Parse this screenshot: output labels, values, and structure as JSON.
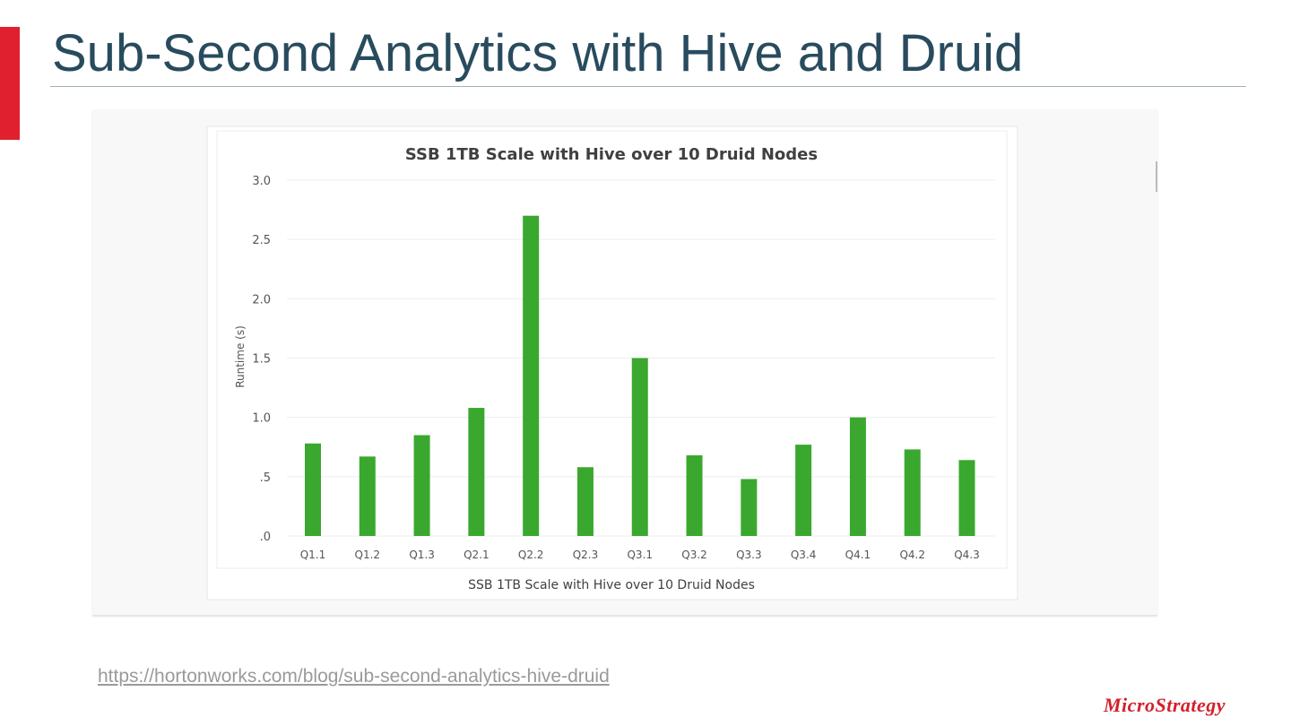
{
  "slide": {
    "title": "Sub-Second Analytics with Hive and Druid",
    "source_link": "https://hortonworks.com/blog/sub-second-analytics-hive-druid",
    "logo_text": "MicroStrategy",
    "accent_color": "#e1202f"
  },
  "chart_data": {
    "type": "bar",
    "title": "SSB 1TB Scale with Hive over 10 Druid Nodes",
    "xlabel": "SSB 1TB Scale with Hive over 10 Druid Nodes",
    "ylabel": "Runtime (s)",
    "categories": [
      "Q1.1",
      "Q1.2",
      "Q1.3",
      "Q2.1",
      "Q2.2",
      "Q2.3",
      "Q3.1",
      "Q3.2",
      "Q3.3",
      "Q3.4",
      "Q4.1",
      "Q4.2",
      "Q4.3"
    ],
    "values": [
      0.78,
      0.67,
      0.85,
      1.08,
      2.7,
      0.58,
      1.5,
      0.68,
      0.48,
      0.77,
      1.0,
      0.73,
      0.64
    ],
    "ylim": [
      0,
      3.0
    ],
    "yticks": [
      0,
      0.5,
      1.0,
      1.5,
      2.0,
      2.5,
      3.0
    ],
    "ytick_labels": [
      ".0",
      ".5",
      "1.0",
      "1.5",
      "2.0",
      "2.5",
      "3.0"
    ],
    "bar_color": "#3aa82f",
    "grid": true,
    "legend": "none"
  }
}
